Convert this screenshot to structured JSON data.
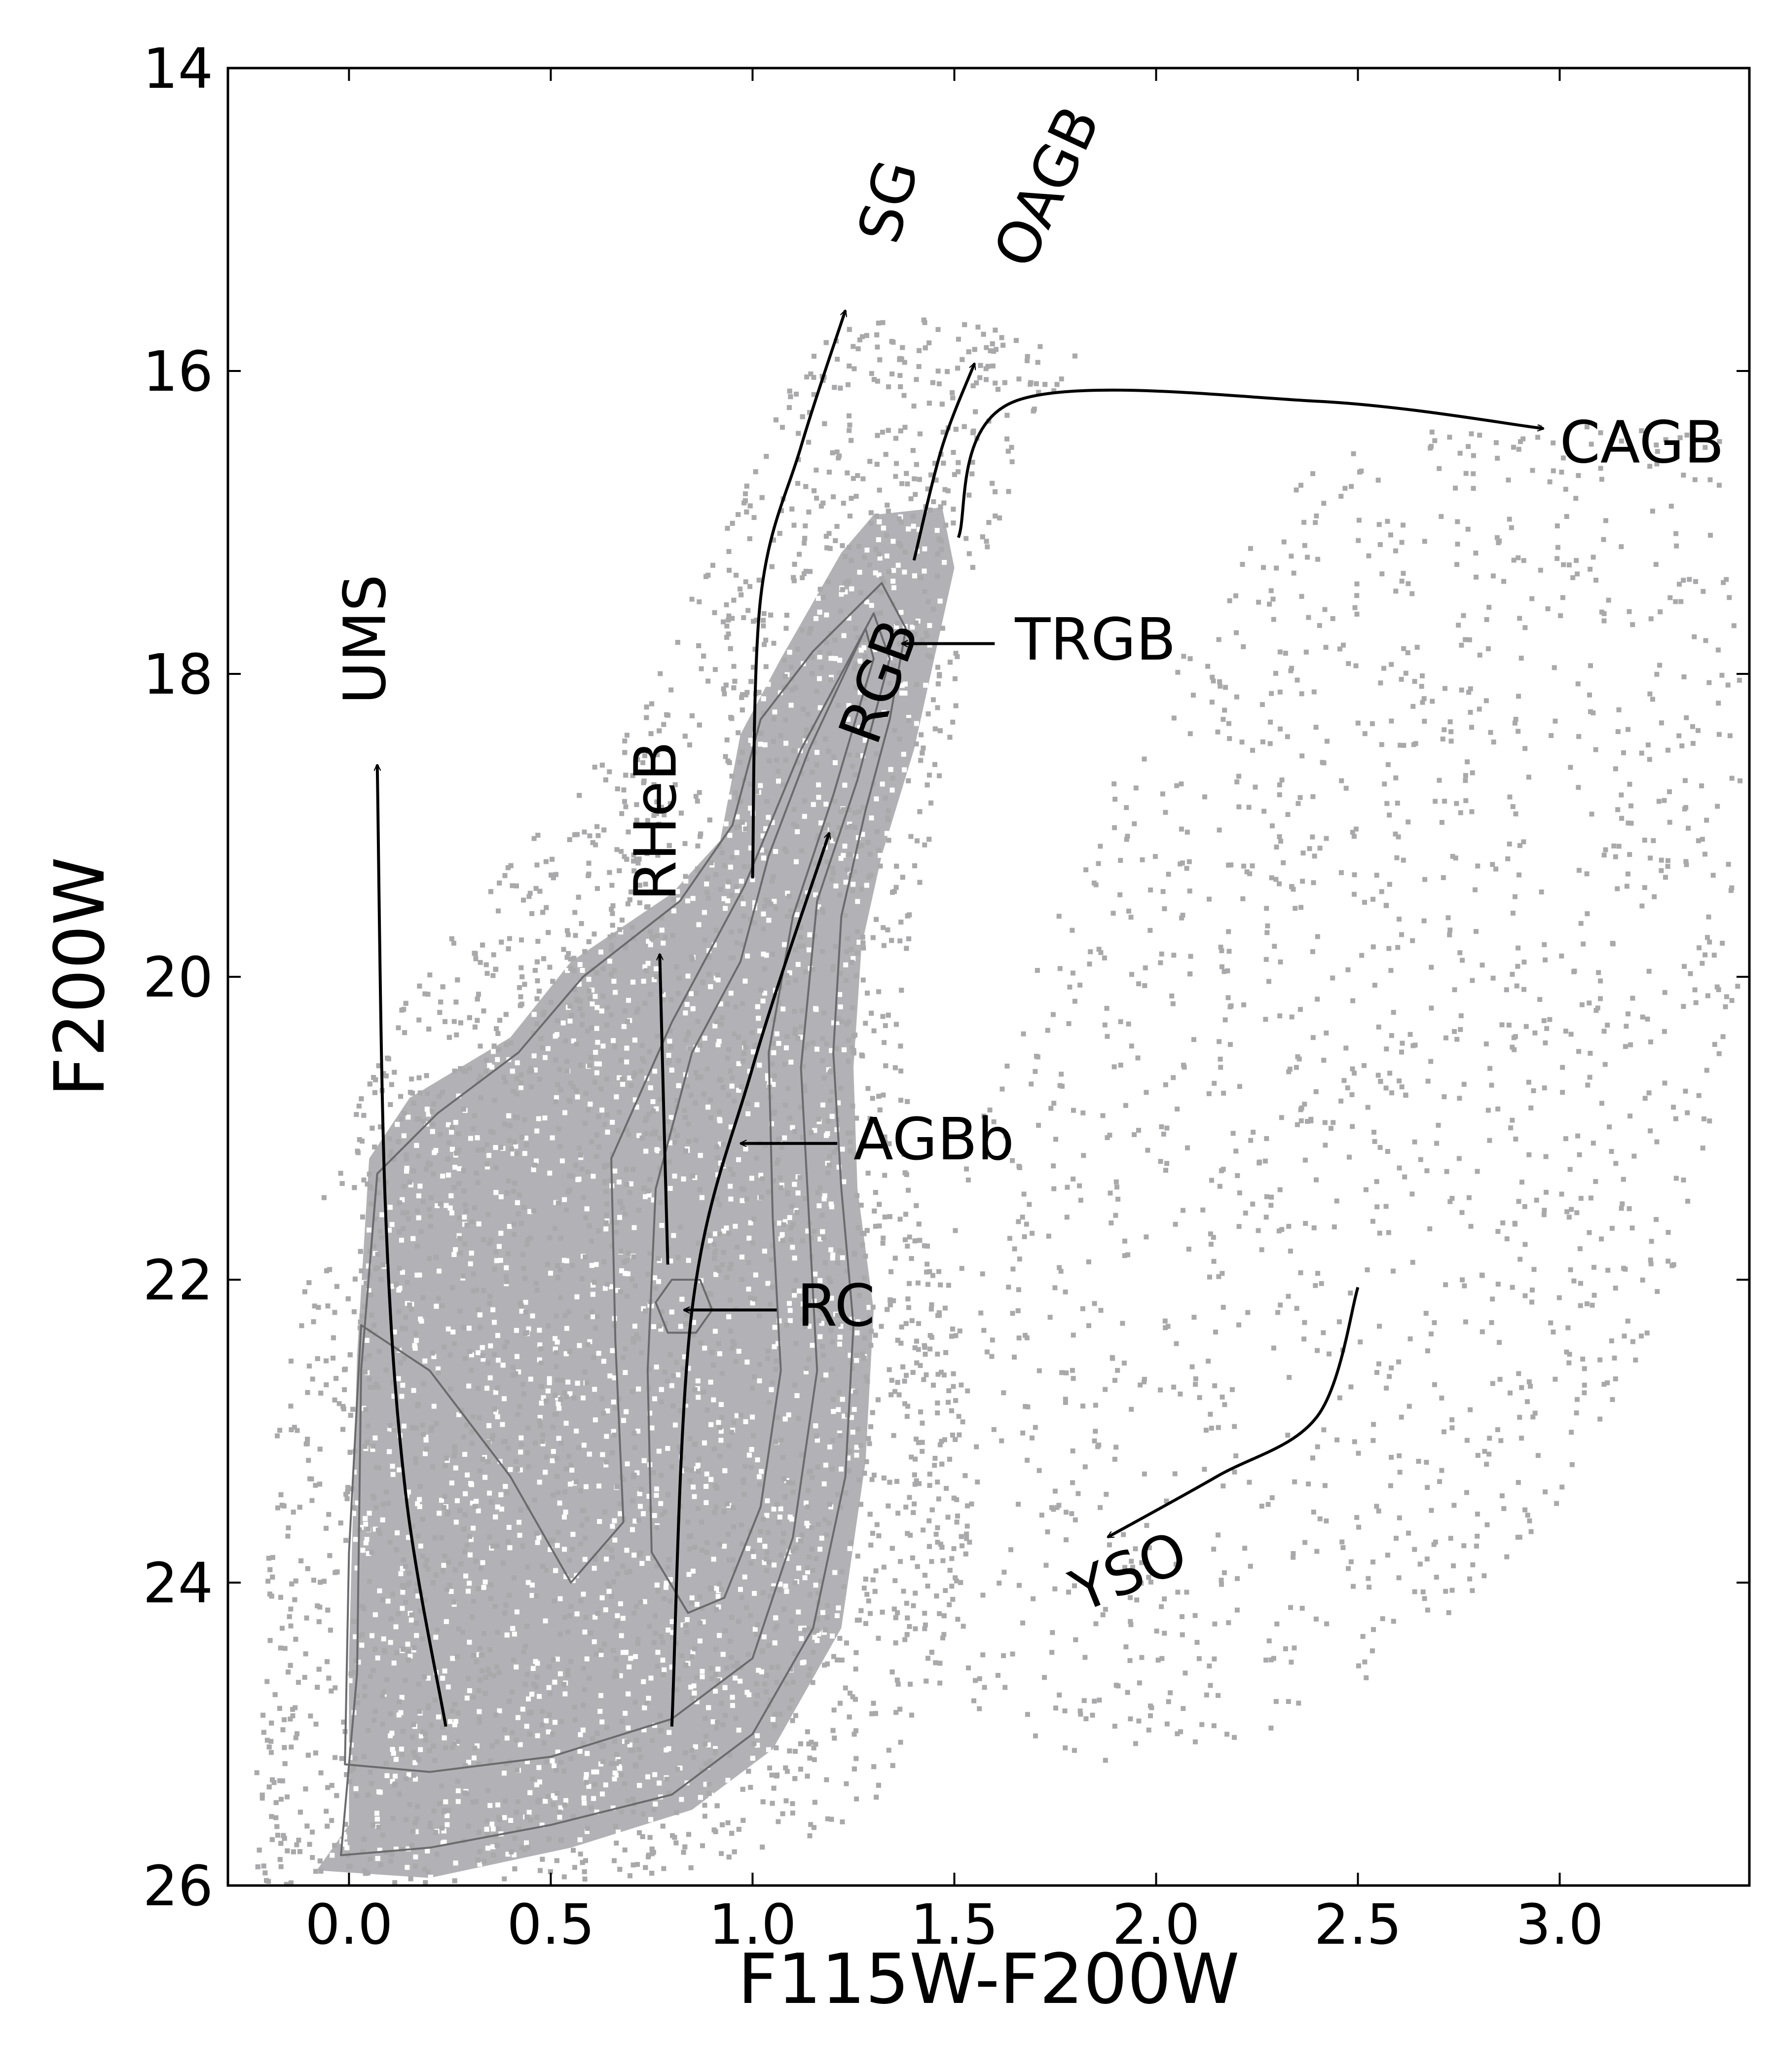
{
  "chart_data": {
    "type": "scatter",
    "xlabel": "F115W-F200W",
    "ylabel": "F200W",
    "xlim": [
      -0.3,
      3.47
    ],
    "ylim": [
      26,
      14
    ],
    "y_inverted": true,
    "x_ticks": [
      "0.0",
      "0.5",
      "1.0",
      "1.5",
      "2.0",
      "2.5",
      "3.0"
    ],
    "x_tick_values": [
      0,
      0.5,
      1.0,
      1.5,
      2.0,
      2.5,
      3.0
    ],
    "y_ticks": [
      "14",
      "16",
      "18",
      "20",
      "22",
      "24",
      "26"
    ],
    "y_tick_values": [
      14,
      16,
      18,
      20,
      22,
      24,
      26
    ],
    "grid": false,
    "colors": {
      "points": "#a9a9ab",
      "density": "#b2b2b6",
      "contour": "#6b6b6e",
      "arrow": "#000000"
    },
    "annotations": [
      {
        "label": "UMS",
        "text_at": [
          0.05,
          18.2
        ],
        "rotation": -90,
        "arrow_path": [
          [
            0.24,
            24.95
          ],
          [
            0.14,
            23.4
          ],
          [
            0.09,
            21.5
          ],
          [
            0.07,
            18.6
          ]
        ]
      },
      {
        "label": "RHeB",
        "text_at": [
          0.77,
          19.5
        ],
        "rotation": -90,
        "arrow_path": [
          [
            0.79,
            21.9
          ],
          [
            0.78,
            20.9
          ],
          [
            0.77,
            19.85
          ]
        ]
      },
      {
        "label": "RGB",
        "text_at": [
          1.27,
          18.45
        ],
        "rotation": -70,
        "arrow_path": [
          [
            0.8,
            24.95
          ],
          [
            0.85,
            22.2
          ],
          [
            1.0,
            20.6
          ],
          [
            1.19,
            19.05
          ]
        ]
      },
      {
        "label": "SG",
        "text_at": [
          1.32,
          15.15
        ],
        "rotation": -75,
        "arrow_path": [
          [
            1.0,
            19.35
          ],
          [
            1.02,
            17.5
          ],
          [
            1.12,
            16.5
          ],
          [
            1.23,
            15.6
          ]
        ]
      },
      {
        "label": "OAGB",
        "text_at": [
          1.65,
          15.3
        ],
        "rotation": -65,
        "arrow_path": [
          [
            1.4,
            17.25
          ],
          [
            1.47,
            16.5
          ],
          [
            1.55,
            15.95
          ]
        ]
      },
      {
        "label": "CAGB",
        "text_at": [
          3.0,
          16.5
        ],
        "rotation": 0,
        "arrow_path": [
          [
            1.51,
            17.1
          ],
          [
            1.65,
            16.2
          ],
          [
            2.4,
            16.2
          ],
          [
            2.96,
            16.38
          ]
        ]
      },
      {
        "label": "TRGB",
        "text_at": [
          1.65,
          17.8
        ],
        "rotation": 0,
        "arrow_path": [
          [
            1.6,
            17.8
          ],
          [
            1.37,
            17.8
          ]
        ]
      },
      {
        "label": "AGBb",
        "text_at": [
          1.25,
          21.1
        ],
        "rotation": 0,
        "arrow_path": [
          [
            1.21,
            21.1
          ],
          [
            0.97,
            21.1
          ]
        ]
      },
      {
        "label": "RC",
        "text_at": [
          1.11,
          22.2
        ],
        "rotation": 0,
        "arrow_path": [
          [
            1.06,
            22.2
          ],
          [
            0.83,
            22.2
          ]
        ]
      },
      {
        "label": "YSO",
        "text_at": [
          1.8,
          24.1
        ],
        "rotation": -22,
        "arrow_path": [
          [
            2.5,
            22.05
          ],
          [
            2.4,
            22.9
          ],
          [
            2.15,
            23.3
          ],
          [
            1.88,
            23.7
          ]
        ]
      }
    ],
    "density_regions": [
      {
        "name": "main-population",
        "polygon": [
          [
            -0.08,
            25.9
          ],
          [
            0.0,
            25.6
          ],
          [
            0.0,
            24.5
          ],
          [
            0.02,
            22.5
          ],
          [
            0.05,
            21.2
          ],
          [
            0.15,
            20.8
          ],
          [
            0.4,
            20.4
          ],
          [
            0.55,
            19.9
          ],
          [
            0.8,
            19.45
          ],
          [
            0.92,
            19.1
          ],
          [
            0.97,
            18.4
          ],
          [
            1.07,
            17.9
          ],
          [
            1.22,
            17.2
          ],
          [
            1.3,
            16.95
          ],
          [
            1.47,
            16.9
          ],
          [
            1.5,
            17.3
          ],
          [
            1.45,
            17.9
          ],
          [
            1.4,
            18.5
          ],
          [
            1.32,
            19.2
          ],
          [
            1.27,
            19.8
          ],
          [
            1.25,
            20.6
          ],
          [
            1.26,
            21.4
          ],
          [
            1.3,
            22.2
          ],
          [
            1.28,
            23.2
          ],
          [
            1.22,
            24.3
          ],
          [
            1.05,
            25.1
          ],
          [
            0.85,
            25.5
          ],
          [
            0.55,
            25.75
          ],
          [
            0.2,
            25.95
          ]
        ]
      },
      {
        "name": "scatter-halo",
        "polygon": [
          [
            -0.25,
            26.0
          ],
          [
            -0.22,
            24.8
          ],
          [
            -0.18,
            22.9
          ],
          [
            -0.07,
            21.5
          ],
          [
            0.1,
            20.3
          ],
          [
            0.35,
            19.4
          ],
          [
            0.55,
            18.8
          ],
          [
            0.75,
            18.1
          ],
          [
            0.9,
            17.2
          ],
          [
            1.05,
            16.3
          ],
          [
            1.2,
            15.7
          ],
          [
            1.45,
            15.6
          ],
          [
            1.8,
            15.9
          ],
          [
            1.62,
            16.9
          ],
          [
            1.55,
            17.6
          ],
          [
            1.5,
            18.4
          ],
          [
            1.42,
            19.3
          ],
          [
            1.37,
            20.3
          ],
          [
            1.4,
            21.3
          ],
          [
            1.52,
            22.5
          ],
          [
            1.55,
            23.6
          ],
          [
            1.48,
            24.6
          ],
          [
            1.3,
            25.5
          ],
          [
            0.9,
            25.95
          ]
        ]
      },
      {
        "name": "red-diffuse",
        "polygon": [
          [
            1.35,
            23.6
          ],
          [
            1.5,
            21.4
          ],
          [
            1.75,
            19.6
          ],
          [
            2.05,
            17.8
          ],
          [
            2.4,
            16.6
          ],
          [
            2.8,
            16.3
          ],
          [
            3.4,
            16.4
          ],
          [
            3.45,
            18.0
          ],
          [
            3.45,
            20.0
          ],
          [
            3.3,
            22.0
          ],
          [
            3.0,
            23.5
          ],
          [
            2.7,
            24.4
          ],
          [
            2.3,
            25.0
          ],
          [
            1.9,
            25.2
          ],
          [
            1.55,
            24.9
          ]
        ]
      }
    ],
    "contours": [
      {
        "level": "outer",
        "polygon": [
          [
            -0.02,
            25.8
          ],
          [
            0.02,
            24.6
          ],
          [
            0.03,
            22.6
          ],
          [
            0.07,
            21.3
          ],
          [
            0.22,
            20.9
          ],
          [
            0.42,
            20.5
          ],
          [
            0.58,
            20.0
          ],
          [
            0.82,
            19.5
          ],
          [
            0.95,
            19.0
          ],
          [
            1.02,
            18.3
          ],
          [
            1.15,
            17.85
          ],
          [
            1.32,
            17.4
          ],
          [
            1.38,
            17.7
          ],
          [
            1.34,
            18.3
          ],
          [
            1.28,
            18.9
          ],
          [
            1.22,
            19.6
          ],
          [
            1.2,
            20.5
          ],
          [
            1.22,
            21.4
          ],
          [
            1.25,
            22.3
          ],
          [
            1.23,
            23.3
          ],
          [
            1.15,
            24.3
          ],
          [
            1.0,
            25.0
          ],
          [
            0.8,
            25.4
          ],
          [
            0.5,
            25.6
          ],
          [
            0.2,
            25.75
          ]
        ]
      },
      {
        "level": "mid",
        "polygon": [
          [
            -0.01,
            25.2
          ],
          [
            0.0,
            23.8
          ],
          [
            0.03,
            22.3
          ],
          [
            0.2,
            22.6
          ],
          [
            0.4,
            23.3
          ],
          [
            0.55,
            24.0
          ],
          [
            0.68,
            23.6
          ],
          [
            0.66,
            22.4
          ],
          [
            0.65,
            21.2
          ],
          [
            0.8,
            20.3
          ],
          [
            0.98,
            19.4
          ],
          [
            1.12,
            18.5
          ],
          [
            1.3,
            17.6
          ],
          [
            1.34,
            17.9
          ],
          [
            1.26,
            18.7
          ],
          [
            1.16,
            19.5
          ],
          [
            1.12,
            20.6
          ],
          [
            1.14,
            21.6
          ],
          [
            1.16,
            22.6
          ],
          [
            1.1,
            23.7
          ],
          [
            1.0,
            24.5
          ],
          [
            0.8,
            24.9
          ],
          [
            0.5,
            25.15
          ],
          [
            0.2,
            25.25
          ]
        ]
      },
      {
        "level": "inner",
        "polygon": [
          [
            0.75,
            23.8
          ],
          [
            0.74,
            22.6
          ],
          [
            0.76,
            21.4
          ],
          [
            0.85,
            20.5
          ],
          [
            0.97,
            19.9
          ],
          [
            1.04,
            19.2
          ],
          [
            1.14,
            18.5
          ],
          [
            1.28,
            17.7
          ],
          [
            1.3,
            17.9
          ],
          [
            1.2,
            18.8
          ],
          [
            1.1,
            19.6
          ],
          [
            1.04,
            20.5
          ],
          [
            1.05,
            21.6
          ],
          [
            1.07,
            22.6
          ],
          [
            1.02,
            23.5
          ],
          [
            0.93,
            24.1
          ],
          [
            0.84,
            24.2
          ]
        ]
      },
      {
        "level": "rc",
        "polygon": [
          [
            0.76,
            22.15
          ],
          [
            0.8,
            22.0
          ],
          [
            0.87,
            22.0
          ],
          [
            0.9,
            22.2
          ],
          [
            0.86,
            22.35
          ],
          [
            0.79,
            22.35
          ]
        ]
      }
    ]
  }
}
